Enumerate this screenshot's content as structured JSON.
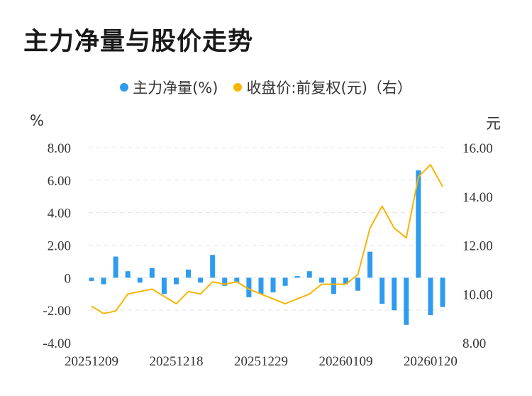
{
  "chart_data": {
    "type": "bar+line",
    "title": "主力净量与股价走势",
    "legend": [
      {
        "name": "主力净量(%)",
        "color": "#2f9bef"
      },
      {
        "name": "收盘价:前复权(元)（右）",
        "color": "#f7b500"
      }
    ],
    "left_axis": {
      "unit": "%",
      "min": -4,
      "max": 8,
      "ticks": [
        "8.00",
        "6.00",
        "4.00",
        "2.00",
        "0",
        "-2.00",
        "-4.00"
      ]
    },
    "right_axis": {
      "unit": "元",
      "min": 8,
      "max": 16,
      "ticks": [
        "16.00",
        "14.00",
        "12.00",
        "10.00",
        "8.00"
      ]
    },
    "x_tick_labels": [
      "20251209",
      "20251218",
      "20251229",
      "20260109",
      "20260120"
    ],
    "x_tick_indices": [
      0,
      7,
      14,
      21,
      28
    ],
    "grid": "horizontal-dashed",
    "legend_position": "top-center",
    "series": [
      {
        "name": "主力净量(%)",
        "type": "bar",
        "color": "#2f9bef",
        "values": [
          -0.2,
          -0.4,
          1.3,
          0.4,
          -0.3,
          0.6,
          -1.0,
          -0.4,
          0.5,
          -0.3,
          1.4,
          -0.5,
          -0.3,
          -1.2,
          -1.0,
          -0.9,
          -0.5,
          0.1,
          0.4,
          -0.3,
          -1.0,
          -0.4,
          -0.8,
          1.6,
          -1.6,
          -2.0,
          -2.9,
          6.6,
          -2.3,
          -1.8
        ]
      },
      {
        "name": "收盘价:前复权(元)（右）",
        "type": "line",
        "color": "#f7b500",
        "values": [
          9.5,
          9.2,
          9.3,
          10.0,
          10.1,
          10.2,
          9.9,
          9.6,
          10.1,
          10.0,
          10.5,
          10.4,
          10.5,
          10.2,
          10.0,
          9.8,
          9.6,
          9.8,
          10.0,
          10.4,
          10.4,
          10.4,
          10.8,
          12.7,
          13.6,
          12.7,
          12.3,
          14.8,
          15.3,
          14.4
        ]
      }
    ]
  }
}
